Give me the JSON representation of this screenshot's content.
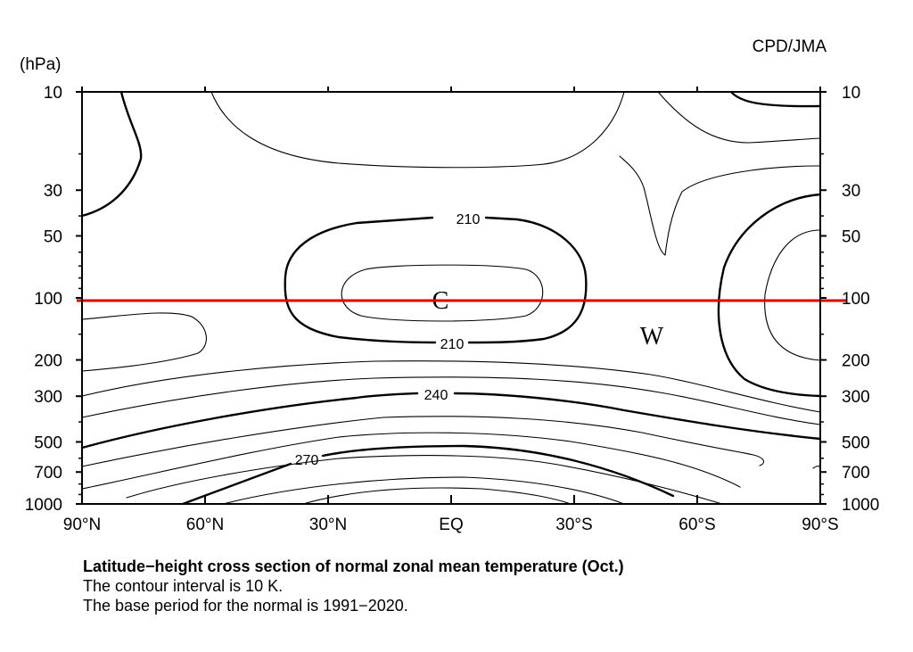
{
  "chart_data": {
    "type": "contour",
    "title": "Latitude−height cross section of normal zonal mean temperature (Oct.)",
    "subtitle_lines": [
      "The contour interval is 10 K.",
      "The base period for the normal is 1991−2020."
    ],
    "source": "CPD/JMA",
    "ylabel": "(hPa)",
    "y_scale": "log",
    "y_reversed": true,
    "xlim": [
      "90°N",
      "90°S"
    ],
    "ylim": [
      10,
      1000
    ],
    "x_ticks": [
      "90°N",
      "60°N",
      "30°N",
      "EQ",
      "30°S",
      "60°S",
      "90°S"
    ],
    "y_ticks": [
      "10",
      "30",
      "50",
      "100",
      "200",
      "300",
      "500",
      "700",
      "1000"
    ],
    "contour_interval": 10,
    "contour_unit": "K",
    "contour_labels": [
      {
        "value": "210",
        "lat": 0,
        "p": 40
      },
      {
        "value": "210",
        "lat": 0,
        "p": 155
      },
      {
        "value": "240",
        "lat": 4,
        "p": 280
      },
      {
        "value": "270",
        "lat": 35,
        "p": 620
      }
    ],
    "region_labels": [
      {
        "text": "C",
        "lat": 3,
        "p": 100
      },
      {
        "text": "W",
        "lat": -48,
        "p": 150
      }
    ],
    "reference_line": {
      "p": 100,
      "color": "#e00000"
    }
  }
}
